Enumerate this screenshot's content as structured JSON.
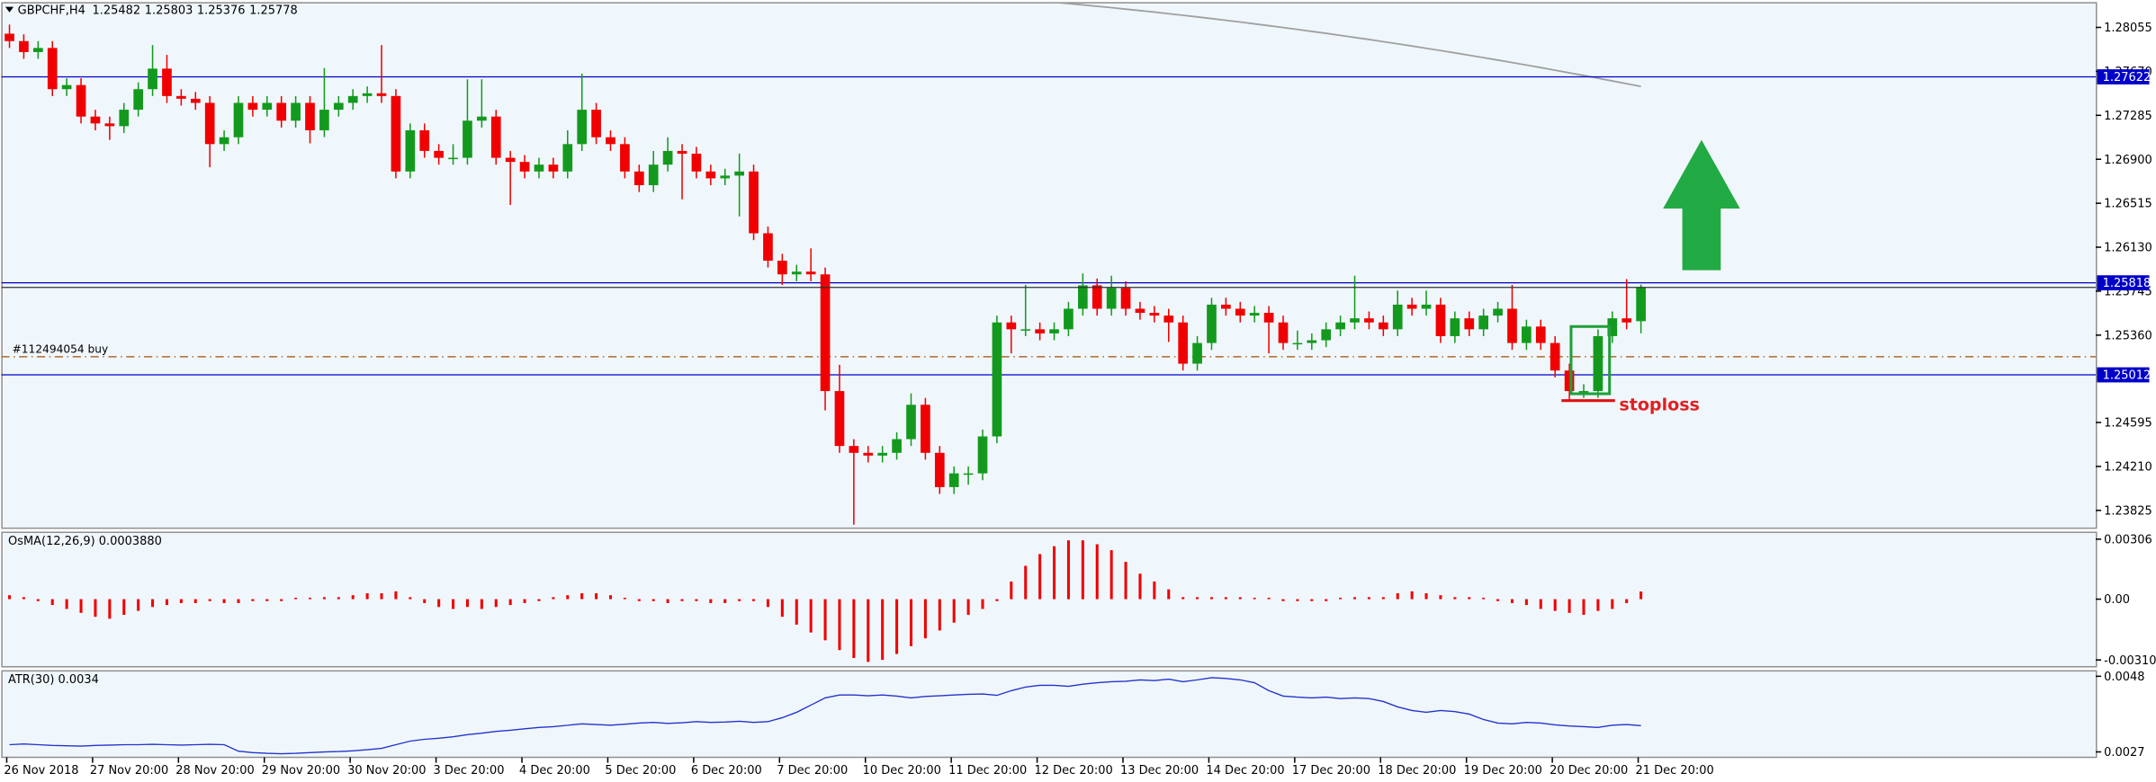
{
  "chart_data": [
    {
      "type": "candlestick",
      "title": "GBPCHF,H4",
      "up_color": "#139a1e",
      "down_color": "#f00000",
      "ylim": [
        1.23669,
        1.28271
      ],
      "yticks": [
        1.28055,
        {
          "value": 1.2767,
          "label": "1.27670"
        },
        1.27285,
        {
          "value": 1.269,
          "label": "1.26900"
        },
        1.26515,
        {
          "value": 1.2613,
          "label": "1.26130"
        },
        1.25745,
        {
          "value": 1.2536,
          "label": "1.25360"
        },
        1.24595,
        {
          "value": 1.2421,
          "label": "1.24210"
        },
        1.23825
      ],
      "levels": [
        {
          "value": 1.27622,
          "color": "#0000c8"
        },
        {
          "value": 1.25818,
          "color": "#0000c8"
        },
        {
          "value": 1.25012,
          "color": "#0000c8"
        }
      ],
      "order": {
        "label": "#112494054 buy",
        "value": 1.25171,
        "color": "#b06a28"
      },
      "annotation": "stoploss",
      "ma": {
        "color": "#a0a0a0",
        "values": [
          null,
          null,
          null,
          null,
          null,
          null,
          null,
          null,
          null,
          null,
          null,
          null,
          null,
          null,
          null,
          null,
          null,
          null,
          null,
          null,
          null,
          null,
          null,
          null,
          null,
          null,
          null,
          null,
          null,
          null,
          null,
          null,
          null,
          null,
          null,
          null,
          null,
          null,
          null,
          null,
          null,
          null,
          null,
          null,
          null,
          null,
          null,
          null,
          null,
          null,
          null,
          null,
          null,
          null,
          null,
          null,
          null,
          null,
          null,
          null,
          null,
          null,
          null,
          null,
          null,
          null,
          null,
          null,
          null,
          null,
          null,
          null,
          1.28285,
          1.28275,
          1.28264,
          1.28252,
          1.2824,
          1.28228,
          1.28215,
          1.28202,
          1.28189,
          1.28175,
          1.28161,
          1.28147,
          1.28132,
          1.28117,
          1.28102,
          1.28086,
          1.2807,
          1.28054,
          1.28037,
          1.2802,
          1.28003,
          1.27985,
          1.27967,
          1.27949,
          1.2793,
          1.27911,
          1.27892,
          1.27872,
          1.27852,
          1.27832,
          1.27811,
          1.2779,
          1.27769,
          1.27747,
          1.27725,
          1.27703,
          1.2768,
          1.27657,
          1.27634,
          1.2761,
          1.27586,
          1.27562,
          1.27538
        ]
      },
      "candles": [
        [
          1.28,
          1.2808,
          1.27875,
          1.27935
        ],
        [
          1.27935,
          1.27995,
          1.27779,
          1.27839
        ],
        [
          1.27839,
          1.27935,
          1.27779,
          1.27875
        ],
        [
          1.27875,
          1.27935,
          1.27454,
          1.27514
        ],
        [
          1.27514,
          1.2761,
          1.27454,
          1.2755
        ],
        [
          1.2755,
          1.2761,
          1.27214,
          1.27274
        ],
        [
          1.27274,
          1.27334,
          1.27154,
          1.27214
        ],
        [
          1.27214,
          1.27274,
          1.2707,
          1.2719
        ],
        [
          1.2719,
          1.27394,
          1.2713,
          1.27334
        ],
        [
          1.27334,
          1.27574,
          1.27274,
          1.27514
        ],
        [
          1.27514,
          1.279,
          1.27454,
          1.27694
        ],
        [
          1.27694,
          1.27815,
          1.27394,
          1.27454
        ],
        [
          1.27454,
          1.27514,
          1.2737,
          1.2743
        ],
        [
          1.2743,
          1.2749,
          1.27334,
          1.27394
        ],
        [
          1.27394,
          1.27454,
          1.2683,
          1.27033
        ],
        [
          1.27033,
          1.27153,
          1.26973,
          1.27093
        ],
        [
          1.27093,
          1.27454,
          1.27033,
          1.27394
        ],
        [
          1.27394,
          1.27454,
          1.27274,
          1.27334
        ],
        [
          1.27334,
          1.27454,
          1.27274,
          1.27394
        ],
        [
          1.27394,
          1.27454,
          1.27178,
          1.27238
        ],
        [
          1.27238,
          1.27454,
          1.27178,
          1.27394
        ],
        [
          1.27394,
          1.27454,
          1.2704,
          1.27154
        ],
        [
          1.27154,
          1.277,
          1.27094,
          1.27334
        ],
        [
          1.27334,
          1.27454,
          1.27274,
          1.27394
        ],
        [
          1.27394,
          1.27514,
          1.27334,
          1.27454
        ],
        [
          1.27454,
          1.27538,
          1.27394,
          1.27478
        ],
        [
          1.27478,
          1.279,
          1.27394,
          1.27454
        ],
        [
          1.27454,
          1.27514,
          1.26733,
          1.26793
        ],
        [
          1.26793,
          1.27214,
          1.26733,
          1.27154
        ],
        [
          1.27154,
          1.27214,
          1.26913,
          1.26973
        ],
        [
          1.26973,
          1.27033,
          1.26853,
          1.26913
        ],
        [
          1.26913,
          1.27033,
          1.26853,
          1.26913
        ],
        [
          1.26913,
          1.276,
          1.26853,
          1.27238
        ],
        [
          1.27238,
          1.276,
          1.27178,
          1.27274
        ],
        [
          1.27274,
          1.27334,
          1.26853,
          1.26913
        ],
        [
          1.26913,
          1.26973,
          1.265,
          1.26877
        ],
        [
          1.26877,
          1.26937,
          1.26733,
          1.26793
        ],
        [
          1.26793,
          1.26913,
          1.26733,
          1.26853
        ],
        [
          1.26853,
          1.26913,
          1.26733,
          1.26793
        ],
        [
          1.26793,
          1.27154,
          1.26733,
          1.27033
        ],
        [
          1.27033,
          1.2765,
          1.26973,
          1.27334
        ],
        [
          1.27334,
          1.27394,
          1.27033,
          1.27093
        ],
        [
          1.27093,
          1.27153,
          1.26973,
          1.27033
        ],
        [
          1.27033,
          1.27093,
          1.26733,
          1.26793
        ],
        [
          1.26793,
          1.26853,
          1.26613,
          1.26673
        ],
        [
          1.26673,
          1.26973,
          1.26613,
          1.26853
        ],
        [
          1.26853,
          1.27093,
          1.26793,
          1.26973
        ],
        [
          1.26973,
          1.27033,
          1.2655,
          1.26949
        ],
        [
          1.26949,
          1.27009,
          1.26733,
          1.26793
        ],
        [
          1.26793,
          1.26853,
          1.26673,
          1.26733
        ],
        [
          1.26733,
          1.26817,
          1.26673,
          1.26757
        ],
        [
          1.26757,
          1.2695,
          1.264,
          1.26793
        ],
        [
          1.26793,
          1.26853,
          1.26192,
          1.26252
        ],
        [
          1.26252,
          1.26312,
          1.25952,
          1.26012
        ],
        [
          1.26012,
          1.26072,
          1.258,
          1.25892
        ],
        [
          1.25892,
          1.25976,
          1.25832,
          1.25916
        ],
        [
          1.25916,
          1.2612,
          1.25832,
          1.25892
        ],
        [
          1.25892,
          1.25952,
          1.247,
          1.2487
        ],
        [
          1.2487,
          1.251,
          1.24329,
          1.24389
        ],
        [
          1.24389,
          1.24449,
          1.237,
          1.24329
        ],
        [
          1.24329,
          1.24389,
          1.24245,
          1.24305
        ],
        [
          1.24305,
          1.24389,
          1.24245,
          1.24329
        ],
        [
          1.24329,
          1.24509,
          1.24269,
          1.24449
        ],
        [
          1.24449,
          1.2485,
          1.24389,
          1.2475
        ],
        [
          1.2475,
          1.2481,
          1.24269,
          1.24329
        ],
        [
          1.24329,
          1.24389,
          1.23969,
          1.24029
        ],
        [
          1.24029,
          1.24209,
          1.23969,
          1.24149
        ],
        [
          1.24149,
          1.24209,
          1.2405,
          1.24149
        ],
        [
          1.24149,
          1.24533,
          1.24089,
          1.24473
        ],
        [
          1.24473,
          1.25531,
          1.24413,
          1.25471
        ],
        [
          1.25471,
          1.25531,
          1.252,
          1.25411
        ],
        [
          1.25411,
          1.258,
          1.25351,
          1.25411
        ],
        [
          1.25411,
          1.25471,
          1.25315,
          1.25375
        ],
        [
          1.25375,
          1.25471,
          1.25315,
          1.25411
        ],
        [
          1.25411,
          1.25651,
          1.25351,
          1.25591
        ],
        [
          1.25591,
          1.259,
          1.25531,
          1.25796
        ],
        [
          1.25796,
          1.25856,
          1.25531,
          1.25591
        ],
        [
          1.25591,
          1.2588,
          1.25531,
          1.25772
        ],
        [
          1.25772,
          1.25832,
          1.25531,
          1.25591
        ],
        [
          1.25591,
          1.25651,
          1.25495,
          1.25555
        ],
        [
          1.25555,
          1.25615,
          1.25471,
          1.25531
        ],
        [
          1.25531,
          1.25591,
          1.253,
          1.25471
        ],
        [
          1.25471,
          1.25531,
          1.2505,
          1.2511
        ],
        [
          1.2511,
          1.25351,
          1.2505,
          1.25291
        ],
        [
          1.25291,
          1.25687,
          1.25231,
          1.25627
        ],
        [
          1.25627,
          1.25687,
          1.25531,
          1.25591
        ],
        [
          1.25591,
          1.25651,
          1.25471,
          1.25531
        ],
        [
          1.25531,
          1.25615,
          1.25471,
          1.25555
        ],
        [
          1.25555,
          1.25615,
          1.252,
          1.25471
        ],
        [
          1.25471,
          1.25531,
          1.25231,
          1.25291
        ],
        [
          1.25291,
          1.254,
          1.25231,
          1.25291
        ],
        [
          1.25291,
          1.25375,
          1.25231,
          1.25315
        ],
        [
          1.25315,
          1.25471,
          1.25255,
          1.25411
        ],
        [
          1.25411,
          1.25531,
          1.25351,
          1.25471
        ],
        [
          1.25471,
          1.2588,
          1.25411,
          1.25507
        ],
        [
          1.25507,
          1.25567,
          1.25411,
          1.25471
        ],
        [
          1.25471,
          1.25531,
          1.25351,
          1.25411
        ],
        [
          1.25411,
          1.2575,
          1.25351,
          1.25627
        ],
        [
          1.25627,
          1.25687,
          1.25531,
          1.25591
        ],
        [
          1.25591,
          1.2575,
          1.25531,
          1.25627
        ],
        [
          1.25627,
          1.25687,
          1.25291,
          1.25351
        ],
        [
          1.25351,
          1.25567,
          1.25291,
          1.25507
        ],
        [
          1.25507,
          1.25567,
          1.25351,
          1.25411
        ],
        [
          1.25411,
          1.25591,
          1.25351,
          1.25531
        ],
        [
          1.25531,
          1.25651,
          1.25471,
          1.25591
        ],
        [
          1.25591,
          1.258,
          1.25231,
          1.25291
        ],
        [
          1.25291,
          1.25495,
          1.25231,
          1.25435
        ],
        [
          1.25435,
          1.25495,
          1.25231,
          1.25291
        ],
        [
          1.25291,
          1.25351,
          1.2499,
          1.2505
        ],
        [
          1.2505,
          1.2511,
          1.2478,
          1.2487
        ],
        [
          1.2487,
          1.2493,
          1.2481,
          1.2487
        ],
        [
          1.2487,
          1.25411,
          1.2481,
          1.25351
        ],
        [
          1.25351,
          1.25567,
          1.25291,
          1.25507
        ],
        [
          1.25507,
          1.2585,
          1.25411,
          1.25471
        ],
        [
          1.25482,
          1.25803,
          1.25376,
          1.25778
        ]
      ]
    },
    {
      "type": "bar",
      "label": "OsMA(12,26,9) 0.0003880",
      "color": "#f00000",
      "ylim": [
        -0.00345,
        0.00341
      ],
      "yticks": [
        0.00306,
        {
          "value": 0,
          "label": "0.00"
        },
        -0.003103
      ],
      "values": [
        0.0002,
        0.0001,
        -0.0001,
        -0.0003,
        -0.0005,
        -0.0007,
        -0.0009,
        -0.001,
        -0.0008,
        -0.0006,
        -0.0004,
        -0.0003,
        -0.0002,
        -0.0002,
        -0.0001,
        -0.0002,
        -0.0002,
        -0.0001,
        -0.0001,
        -0.0001,
        0,
        0,
        0.0001,
        0.0001,
        0.0002,
        0.0003,
        0.0003,
        0.0004,
        0.0001,
        -0.0002,
        -0.0004,
        -0.0005,
        -0.0004,
        -0.0005,
        -0.0004,
        -0.0003,
        -0.0002,
        -0.0001,
        0.0001,
        0.0002,
        0.0003,
        0.0003,
        0.0002,
        0,
        -0.0001,
        -0.0001,
        -0.0002,
        -0.0001,
        -0.0001,
        -0.0002,
        -0.0002,
        -0.0001,
        -0.0001,
        -0.0004,
        -0.0009,
        -0.0013,
        -0.0017,
        -0.0021,
        -0.0026,
        -0.003,
        -0.0032,
        -0.0031,
        -0.0028,
        -0.0024,
        -0.002,
        -0.0016,
        -0.0012,
        -0.0008,
        -0.0005,
        -0.0001,
        0.0009,
        0.0017,
        0.0023,
        0.0027,
        0.003,
        0.003,
        0.0028,
        0.0025,
        0.0019,
        0.0013,
        0.0009,
        0.0005,
        0.0001,
        0.0001,
        0.0001,
        0.0001,
        0.0001,
        0,
        0,
        -0.0001,
        -0.0001,
        -0.0001,
        -0.0001,
        0,
        0.0001,
        0.0001,
        0.0001,
        0.0003,
        0.0004,
        0.0003,
        0.0002,
        0.0001,
        0.0001,
        0,
        -0.0001,
        -0.0002,
        -0.0003,
        -0.0005,
        -0.0006,
        -0.0007,
        -0.0008,
        -0.0006,
        -0.0005,
        -0.0002,
        0.000388
      ]
    },
    {
      "type": "line",
      "label": "ATR(30) 0.0034",
      "color": "#2233cc",
      "ylim": [
        0.00255,
        0.00495
      ],
      "yticks": [
        0.0048,
        0.0027
      ],
      "x_labels": [
        "26 Nov 2018",
        "27 Nov 20:00",
        "28 Nov 20:00",
        "29 Nov 20:00",
        "30 Nov 20:00",
        "3 Dec 20:00",
        "4 Dec 20:00",
        "5 Dec 20:00",
        "6 Dec 20:00",
        "7 Dec 20:00",
        "10 Dec 20:00",
        "11 Dec 20:00",
        "12 Dec 20:00",
        "13 Dec 20:00",
        "14 Dec 20:00",
        "17 Dec 20:00",
        "18 Dec 20:00",
        "19 Dec 20:00",
        "20 Dec 20:00",
        "21 Dec 20:00"
      ],
      "values": [
        0.0029,
        0.00292,
        0.0029,
        0.00288,
        0.00287,
        0.00286,
        0.00288,
        0.00289,
        0.0029,
        0.0029,
        0.00291,
        0.0029,
        0.00289,
        0.0029,
        0.00291,
        0.0029,
        0.00272,
        0.00268,
        0.00266,
        0.00265,
        0.00266,
        0.00268,
        0.0027,
        0.00271,
        0.00273,
        0.00276,
        0.0028,
        0.0029,
        0.003,
        0.00305,
        0.00308,
        0.00312,
        0.00318,
        0.00322,
        0.00327,
        0.0033,
        0.00334,
        0.00338,
        0.0034,
        0.00344,
        0.00348,
        0.00346,
        0.00344,
        0.00347,
        0.0035,
        0.00352,
        0.00349,
        0.00351,
        0.00354,
        0.00352,
        0.00353,
        0.00355,
        0.00352,
        0.00354,
        0.00365,
        0.0038,
        0.004,
        0.0042,
        0.00428,
        0.00428,
        0.00426,
        0.00428,
        0.00425,
        0.0042,
        0.00424,
        0.00426,
        0.00428,
        0.0043,
        0.00431,
        0.00427,
        0.0044,
        0.0045,
        0.00455,
        0.00455,
        0.00452,
        0.00458,
        0.00462,
        0.00465,
        0.00466,
        0.0047,
        0.00468,
        0.00472,
        0.00465,
        0.0047,
        0.00476,
        0.00474,
        0.0047,
        0.00462,
        0.0044,
        0.00425,
        0.00422,
        0.0042,
        0.00422,
        0.00418,
        0.0042,
        0.00418,
        0.0041,
        0.00395,
        0.00385,
        0.0038,
        0.00385,
        0.00382,
        0.00375,
        0.0036,
        0.0035,
        0.00348,
        0.00352,
        0.0035,
        0.00345,
        0.00342,
        0.0034,
        0.00338,
        0.00344,
        0.00346,
        0.00343
      ]
    }
  ]
}
